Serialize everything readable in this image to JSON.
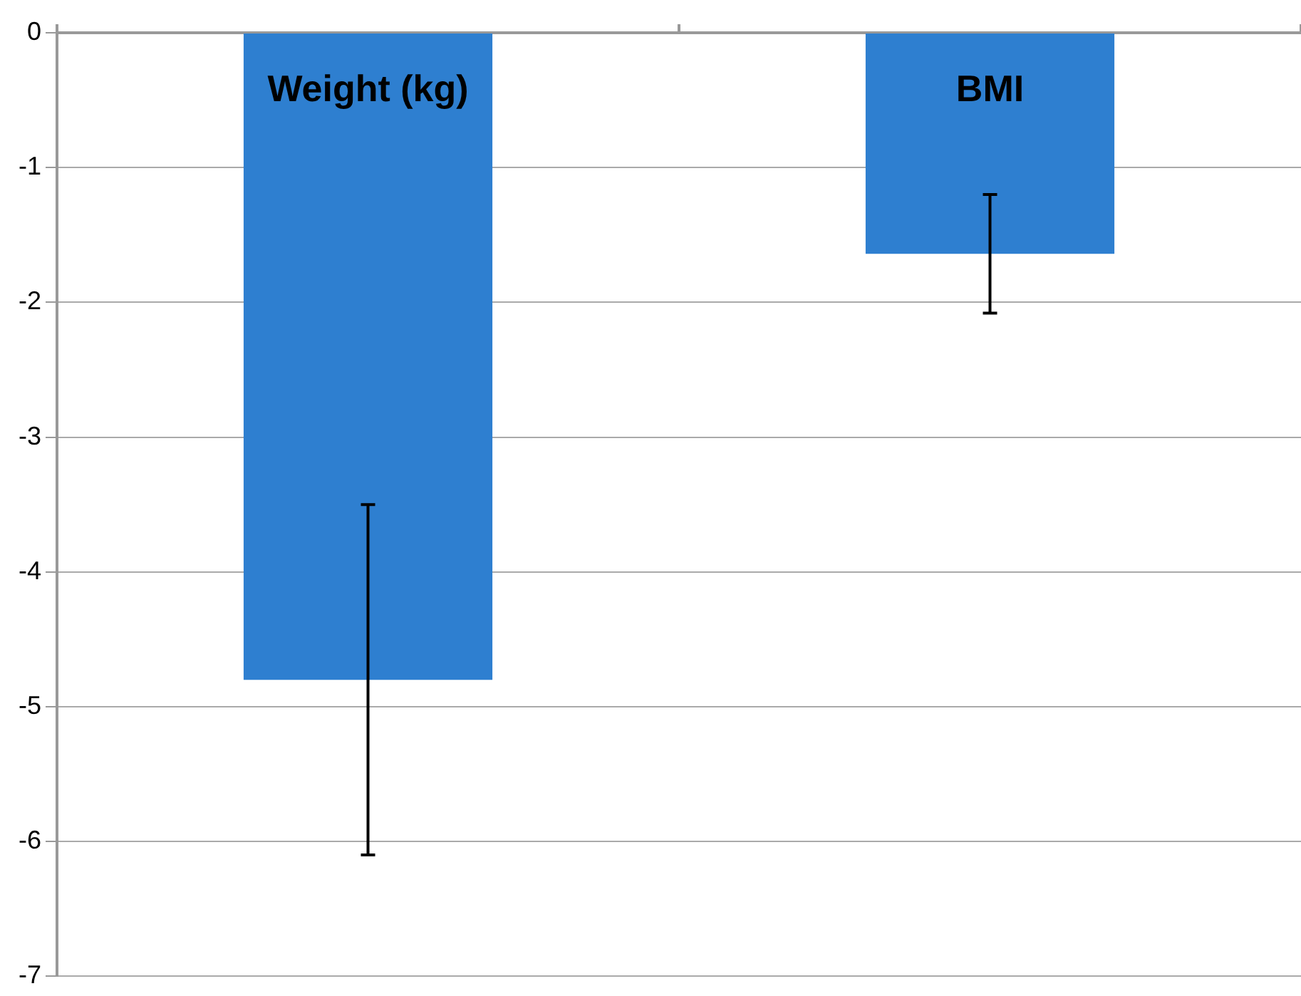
{
  "chart_data": {
    "type": "bar",
    "categories": [
      "Weight (kg)",
      "BMI"
    ],
    "values": [
      -4.8,
      -1.64
    ],
    "errors": [
      1.3,
      0.44
    ],
    "color": "#2e7fd0",
    "ylim": [
      -7,
      0
    ],
    "yticks": [
      0,
      -1,
      -2,
      -3,
      -4,
      -5,
      -6,
      -7
    ],
    "grid": "y"
  }
}
